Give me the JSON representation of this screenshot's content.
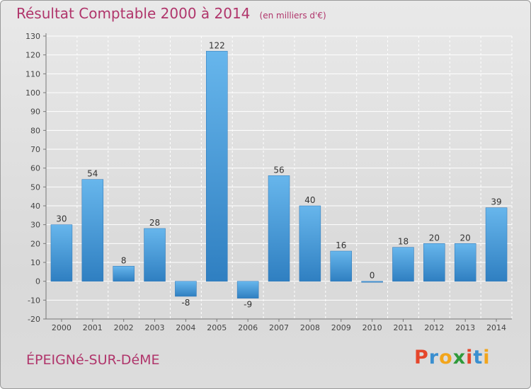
{
  "header": {
    "title": "Résultat Comptable 2000 à 2014",
    "subtitle": "(en milliers d'€)"
  },
  "footer": {
    "commune": "ÉPEIGNé-SUR-DéME",
    "logo_text": "Proxiti",
    "logo_colors": [
      "#e5462b",
      "#3a8fd0",
      "#f2a51b",
      "#2f9a3a",
      "#e5462b",
      "#3a8fd0",
      "#f2a51b"
    ]
  },
  "colors": {
    "bar_light": "#67b6ec",
    "bar_dark": "#2f7fc1",
    "title": "#b0356b",
    "grid": "#ffffff"
  },
  "chart_data": {
    "type": "bar",
    "categories": [
      "2000",
      "2001",
      "2002",
      "2003",
      "2004",
      "2005",
      "2006",
      "2007",
      "2008",
      "2009",
      "2010",
      "2011",
      "2012",
      "2013",
      "2014"
    ],
    "values": [
      30,
      54,
      8,
      28,
      -8,
      122,
      -9,
      56,
      40,
      16,
      0,
      18,
      20,
      20,
      39
    ],
    "ylim": [
      -20,
      130
    ],
    "yticks": [
      -20,
      -10,
      0,
      10,
      20,
      30,
      40,
      50,
      60,
      70,
      80,
      90,
      100,
      110,
      120,
      130
    ],
    "grid": true,
    "title": "Résultat Comptable 2000 à 2014",
    "xlabel": "",
    "ylabel": ""
  }
}
